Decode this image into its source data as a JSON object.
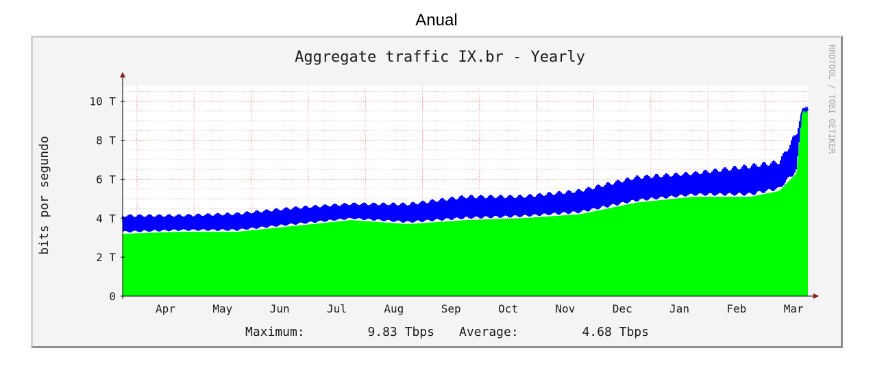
{
  "heading": "Anual",
  "chart_data": {
    "type": "area",
    "title": "Aggregate traffic IX.br - Yearly",
    "ylabel": "bits por segundo",
    "xlabel": "",
    "ylim": [
      0,
      10.8
    ],
    "yticks": [
      {
        "value": 0,
        "label": "0"
      },
      {
        "value": 2,
        "label": "2 T"
      },
      {
        "value": 4,
        "label": "4 T"
      },
      {
        "value": 6,
        "label": "6 T"
      },
      {
        "value": 8,
        "label": "8 T"
      },
      {
        "value": 10,
        "label": "10 T"
      }
    ],
    "xlim": [
      0,
      12
    ],
    "xticks": [
      {
        "label": "Apr",
        "pos": 0.75
      },
      {
        "label": "May",
        "pos": 1.75
      },
      {
        "label": "Jun",
        "pos": 2.75
      },
      {
        "label": "Jul",
        "pos": 3.75
      },
      {
        "label": "Aug",
        "pos": 4.75
      },
      {
        "label": "Sep",
        "pos": 5.75
      },
      {
        "label": "Oct",
        "pos": 6.75
      },
      {
        "label": "Nov",
        "pos": 7.75
      },
      {
        "label": "Dec",
        "pos": 8.75
      },
      {
        "label": "Jan",
        "pos": 9.75
      },
      {
        "label": "Feb",
        "pos": 10.75
      },
      {
        "label": "Mar",
        "pos": 11.75
      }
    ],
    "month_boundaries": [
      0.25,
      1.25,
      2.25,
      3.25,
      4.25,
      5.25,
      6.25,
      7.25,
      8.25,
      9.25,
      10.25,
      11.25
    ],
    "grid": true,
    "series": [
      {
        "name": "Average",
        "color": "#00ff00",
        "x": [
          0,
          1,
          2,
          3,
          4,
          5,
          6,
          7,
          8,
          9,
          10,
          11,
          11.5,
          11.8,
          11.9,
          12
        ],
        "values": [
          3.2,
          3.3,
          3.3,
          3.6,
          3.9,
          3.7,
          3.9,
          4.0,
          4.2,
          4.8,
          5.1,
          5.1,
          5.4,
          6.3,
          9.6,
          9.6
        ]
      },
      {
        "name": "Maximum",
        "color": "#0000ff",
        "x": [
          0,
          1,
          2,
          3,
          4,
          5,
          6,
          7,
          8,
          9,
          10,
          11,
          11.5,
          11.8,
          11.9,
          12
        ],
        "values": [
          4.5,
          4.5,
          4.6,
          4.9,
          5.1,
          5.1,
          5.5,
          5.5,
          5.8,
          6.5,
          6.7,
          7.1,
          7.3,
          8.8,
          9.8,
          9.8
        ]
      }
    ],
    "legend": {
      "max_label": "Maximum:",
      "max_value": "9.83 Tbps",
      "avg_label": "Average:",
      "avg_value": "4.68 Tbps"
    },
    "watermark": "RRDTOOL / TOBI OETIKER",
    "colors": {
      "area": "#00ff00",
      "line": "#0000ff",
      "grid_major": "#ff8080",
      "grid_minor": "#e3c0c0",
      "axis": "#000000",
      "arrow": "#8b1a1a"
    }
  }
}
